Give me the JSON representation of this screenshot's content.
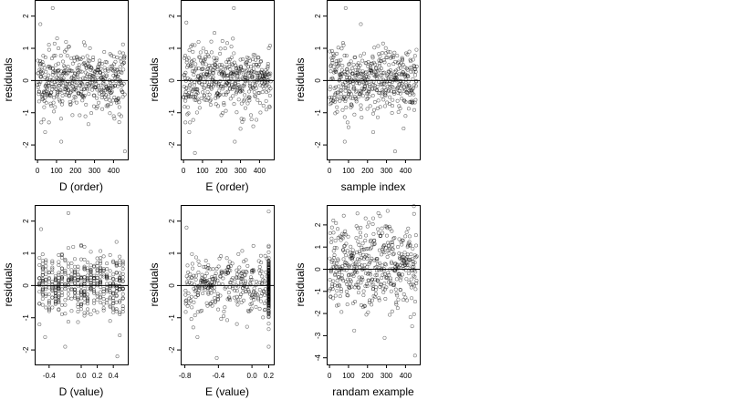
{
  "chart_data": [
    {
      "type": "scatter",
      "xlabel": "D (order)",
      "ylabel": "residuals",
      "xlim": [
        -15,
        475
      ],
      "ylim": [
        -2.45,
        2.5
      ],
      "xticks": [
        0,
        100,
        200,
        300,
        400
      ],
      "xtick_labels": [
        "0",
        "100",
        "200",
        "300",
        "400"
      ],
      "yticks": [
        -2,
        -1,
        0,
        1,
        2
      ],
      "ytick_labels": [
        "-2",
        "-1",
        "0",
        "1",
        "2"
      ],
      "hline": 0,
      "n_points": 460,
      "noise_sd": 0.48,
      "seed": 11,
      "outliers": [
        [
          80,
          2.25
        ],
        [
          15,
          1.75
        ],
        [
          110,
          1.0
        ],
        [
          150,
          1.2
        ],
        [
          20,
          -1.3
        ],
        [
          40,
          -1.6
        ],
        [
          60,
          -1.3
        ],
        [
          125,
          -1.9
        ],
        [
          460,
          -2.2
        ],
        [
          430,
          -1.05
        ]
      ]
    },
    {
      "type": "scatter",
      "xlabel": "E (order)",
      "ylabel": "residuals",
      "xlim": [
        -15,
        475
      ],
      "ylim": [
        -2.45,
        2.5
      ],
      "xticks": [
        0,
        100,
        200,
        300,
        400
      ],
      "xtick_labels": [
        "0",
        "100",
        "200",
        "300",
        "400"
      ],
      "yticks": [
        -2,
        -1,
        0,
        1,
        2
      ],
      "ytick_labels": [
        "-2",
        "-1",
        "0",
        "1",
        "2"
      ],
      "hline": 0,
      "n_points": 460,
      "noise_sd": 0.48,
      "seed": 23,
      "outliers": [
        [
          15,
          1.8
        ],
        [
          265,
          2.25
        ],
        [
          260,
          1.3
        ],
        [
          10,
          -1.3
        ],
        [
          30,
          -1.6
        ],
        [
          60,
          -2.25
        ],
        [
          270,
          -1.9
        ],
        [
          300,
          -1.5
        ]
      ]
    },
    {
      "type": "scatter",
      "xlabel": "sample index",
      "ylabel": "residuals",
      "xlim": [
        -15,
        475
      ],
      "ylim": [
        -2.45,
        2.5
      ],
      "xticks": [
        0,
        100,
        200,
        300,
        400
      ],
      "xtick_labels": [
        "0",
        "100",
        "200",
        "300",
        "400"
      ],
      "yticks": [
        -2,
        -1,
        0,
        1,
        2
      ],
      "ytick_labels": [
        "-2",
        "-1",
        "0",
        "1",
        "2"
      ],
      "hline": 0,
      "n_points": 460,
      "noise_sd": 0.48,
      "seed": 37,
      "outliers": [
        [
          85,
          2.25
        ],
        [
          165,
          1.75
        ],
        [
          95,
          -1.3
        ],
        [
          100,
          -1.45
        ],
        [
          80,
          -1.9
        ],
        [
          230,
          -1.6
        ],
        [
          345,
          -2.2
        ],
        [
          400,
          -1.1
        ]
      ]
    },
    {
      "type": "scatter",
      "xlabel": "D (value)",
      "ylabel": "residuals",
      "xlim": [
        -0.58,
        0.58
      ],
      "ylim": [
        -2.45,
        2.5
      ],
      "xticks": [
        -0.4,
        0.0,
        0.2,
        0.4
      ],
      "xtick_labels": [
        "-0.4",
        "0.0",
        "0.2",
        "0.4"
      ],
      "yticks": [
        -2,
        -1,
        0,
        1,
        2
      ],
      "ytick_labels": [
        "-2",
        "-1",
        "0",
        "1",
        "2"
      ],
      "hline": 0,
      "n_points": 460,
      "noise_sd": 0.48,
      "seed": 41,
      "x_levels": [
        -0.52,
        -0.48,
        -0.44,
        -0.4,
        -0.36,
        -0.32,
        -0.28,
        -0.24,
        -0.2,
        -0.16,
        -0.12,
        -0.08,
        -0.04,
        0.0,
        0.04,
        0.08,
        0.12,
        0.16,
        0.2,
        0.24,
        0.28,
        0.32,
        0.36,
        0.4,
        0.44,
        0.48,
        0.52
      ],
      "outliers": [
        [
          -0.16,
          2.25
        ],
        [
          -0.5,
          1.75
        ],
        [
          -0.1,
          1.2
        ],
        [
          -0.45,
          -1.6
        ],
        [
          -0.2,
          -1.9
        ],
        [
          0.45,
          -2.2
        ],
        [
          0.36,
          -1.1
        ]
      ]
    },
    {
      "type": "scatter",
      "xlabel": "E (value)",
      "ylabel": "residuals",
      "xlim": [
        -0.85,
        0.26
      ],
      "ylim": [
        -2.45,
        2.5
      ],
      "xticks": [
        -0.8,
        -0.4,
        0.0,
        0.2
      ],
      "xtick_labels": [
        "-0.8",
        "-0.4",
        "0.0",
        "0.2"
      ],
      "yticks": [
        -2,
        -1,
        0,
        1,
        2
      ],
      "ytick_labels": [
        "-2",
        "-1",
        "0",
        "1",
        "2"
      ],
      "hline": 0,
      "n_points": 300,
      "noise_sd": 0.45,
      "seed": 53,
      "x_range": [
        -0.8,
        0.18
      ],
      "dense_x": 0.2,
      "dense_n": 170,
      "outliers": [
        [
          0.2,
          2.3
        ],
        [
          -0.78,
          1.8
        ],
        [
          0.2,
          1.2
        ],
        [
          -0.7,
          -1.3
        ],
        [
          -0.65,
          -1.6
        ],
        [
          -0.42,
          -2.25
        ],
        [
          0.2,
          -1.9
        ]
      ]
    },
    {
      "type": "scatter",
      "xlabel": "randam example",
      "ylabel": "residuals",
      "xlim": [
        -15,
        475
      ],
      "ylim": [
        -4.3,
        2.9
      ],
      "xticks": [
        0,
        100,
        200,
        300,
        400
      ],
      "xtick_labels": [
        "0",
        "100",
        "200",
        "300",
        "400"
      ],
      "yticks": [
        -4,
        -3,
        -2,
        -1,
        0,
        1,
        2
      ],
      "ytick_labels": [
        "-4",
        "-3",
        "-2",
        "-1",
        "0",
        "1",
        "2"
      ],
      "hline": 0,
      "n_points": 460,
      "noise_sd": 0.95,
      "seed": 67,
      "outliers": [
        [
          450,
          -3.9
        ],
        [
          290,
          -3.1
        ],
        [
          445,
          2.5
        ],
        [
          20,
          2.2
        ],
        [
          230,
          2.3
        ]
      ]
    }
  ]
}
